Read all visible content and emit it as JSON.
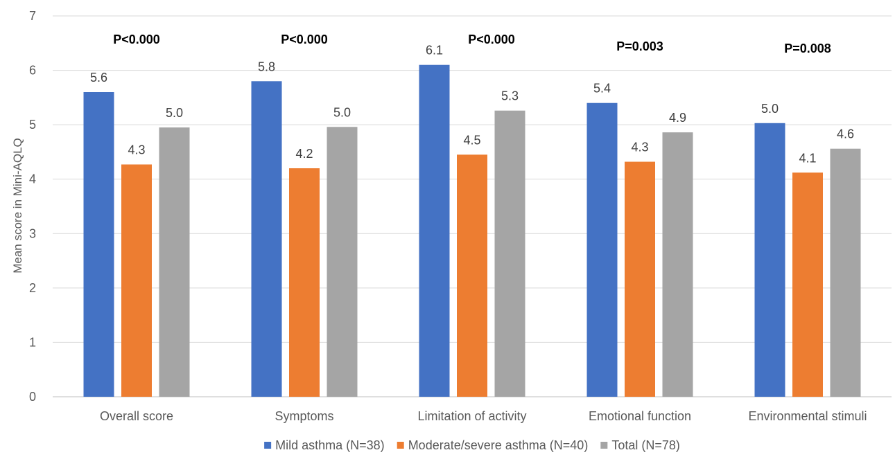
{
  "chart_data": {
    "type": "bar",
    "title": "",
    "xlabel": "",
    "ylabel": "Mean score in Mini-AQLQ",
    "ylim": [
      0,
      7
    ],
    "yticks": [
      0,
      1,
      2,
      3,
      4,
      5,
      6,
      7
    ],
    "grid": true,
    "legend_position": "bottom",
    "categories": [
      "Overall score",
      "Symptoms",
      "Limitation of activity",
      "Emotional function",
      "Environmental stimuli"
    ],
    "series": [
      {
        "name": "Mild asthma (N=38)",
        "color": "#4472C4",
        "values": [
          5.6,
          5.8,
          6.1,
          5.4,
          5.03
        ],
        "labels": [
          "5.6",
          "5.8",
          "6.1",
          "5.4",
          "5.0"
        ]
      },
      {
        "name": "Moderate/severe asthma (N=40)",
        "color": "#ED7D31",
        "values": [
          4.27,
          4.2,
          4.45,
          4.32,
          4.12
        ],
        "labels": [
          "4.3",
          "4.2",
          "4.5",
          "4.3",
          "4.1"
        ]
      },
      {
        "name": "Total (N=78)",
        "color": "#A5A5A5",
        "values": [
          4.95,
          4.96,
          5.26,
          4.86,
          4.56
        ],
        "labels": [
          "5.0",
          "5.0",
          "5.3",
          "4.9",
          "4.6"
        ]
      }
    ],
    "annotations": [
      "P<0.000",
      "P<0.000",
      "P<0.000",
      "P=0.003",
      "P=0.008"
    ]
  }
}
